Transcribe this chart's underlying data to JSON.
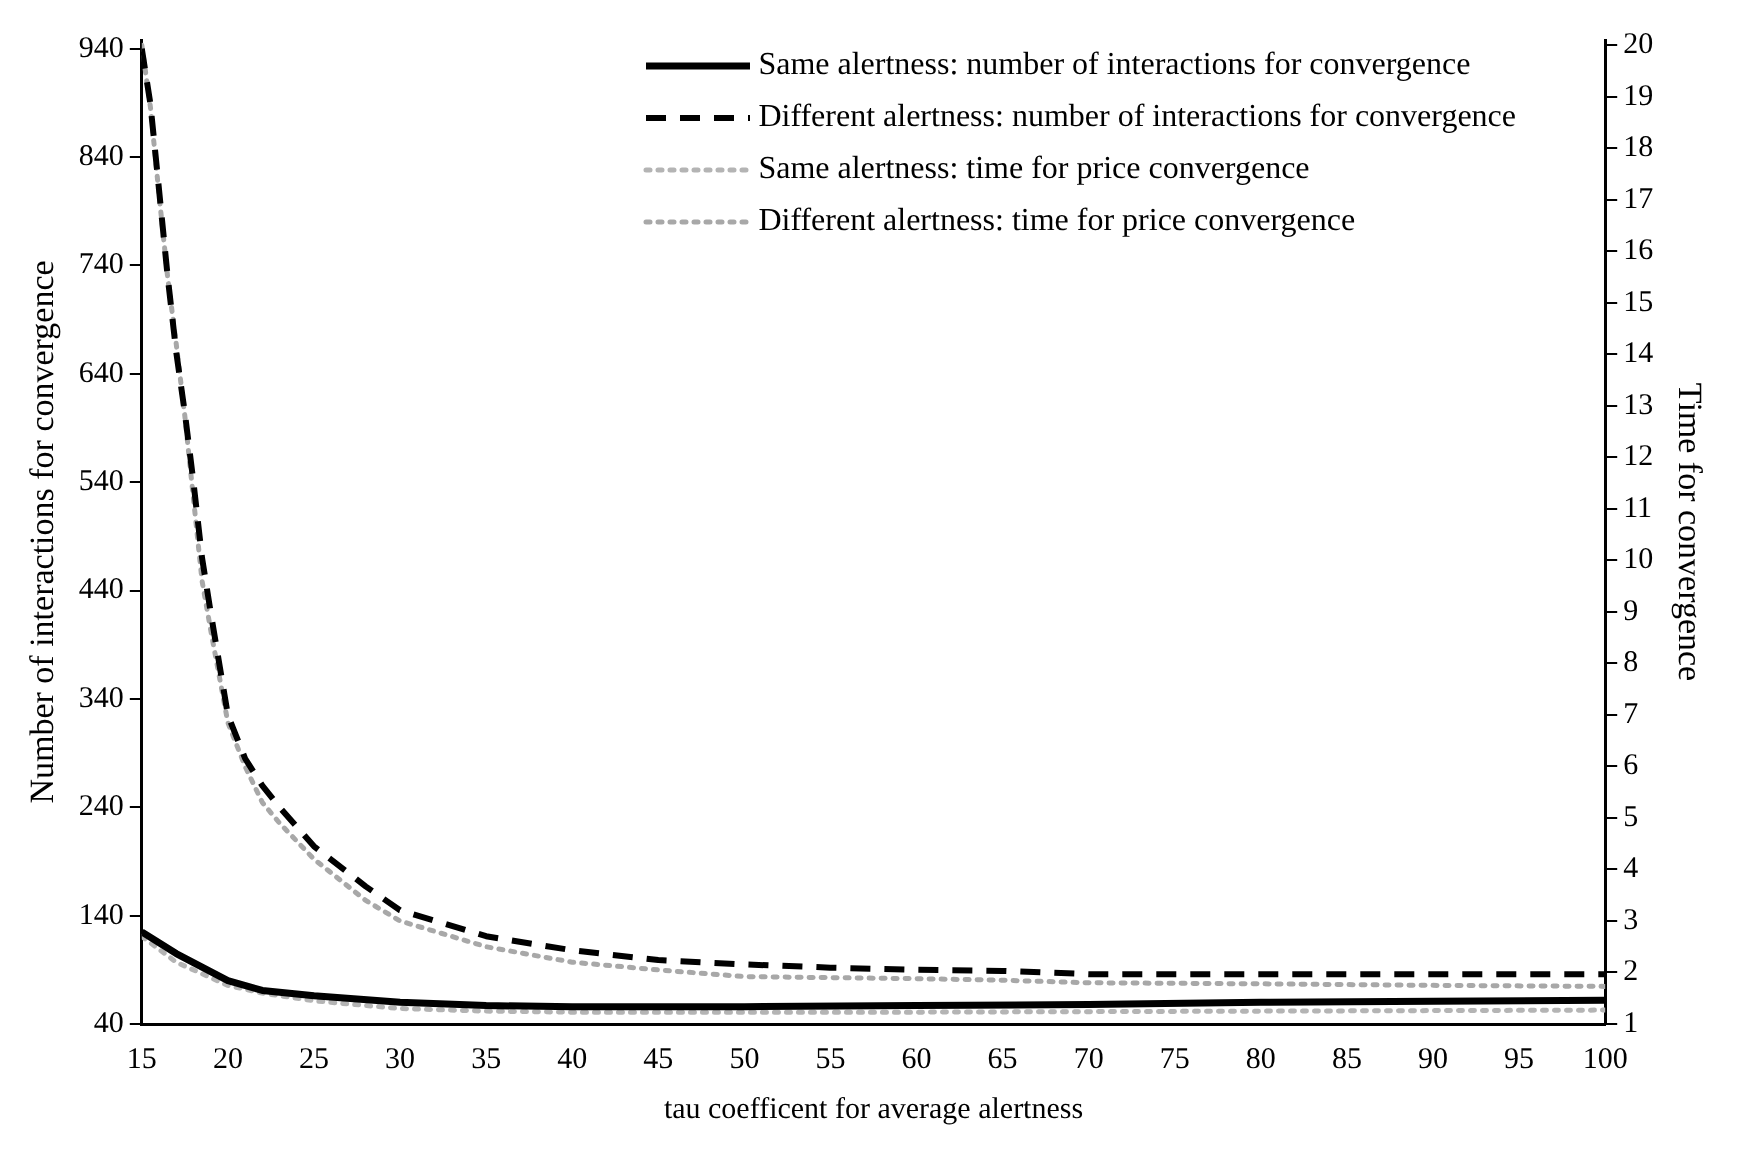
{
  "chart_data": {
    "type": "line",
    "xlabel": "tau coefficent for average alertness",
    "ylabel": "Number of interactions for convergence",
    "y2label": "Time for convergence",
    "x": [
      15,
      15.5,
      16,
      16.5,
      17,
      17.5,
      18,
      18.5,
      19,
      20,
      21,
      22,
      23,
      25,
      28,
      30,
      35,
      40,
      45,
      50,
      55,
      60,
      65,
      70,
      80,
      90,
      100
    ],
    "series": [
      {
        "name": "Same alertness: number of interactions for convergence",
        "color": "#000000",
        "line_style": "solid",
        "x": [
          15,
          17,
          20,
          22,
          25,
          30,
          35,
          40,
          50,
          60,
          70,
          80,
          90,
          100
        ],
        "values": [
          125,
          105,
          80,
          71,
          66,
          60,
          57,
          56,
          56,
          57,
          58,
          60,
          61,
          62
        ]
      },
      {
        "name": "Different alertness: number of interactions for convergence",
        "color": "#000000",
        "line_style": "dashed",
        "values": [
          940,
          889,
          810,
          730,
          660,
          604,
          540,
          470,
          420,
          325,
          285,
          260,
          240,
          204,
          167,
          145,
          121,
          108,
          99,
          95,
          92,
          90,
          89,
          86,
          86,
          86,
          86
        ]
      },
      {
        "name": "Same alertness: time for price convergence",
        "color": "#b4b4b4",
        "line_style": "dotted",
        "axis": "y2",
        "x": [
          15,
          17,
          20,
          22,
          25,
          30,
          35,
          40,
          50,
          60,
          70,
          80,
          90,
          100
        ],
        "values": [
          2.7,
          2.2,
          1.75,
          1.6,
          1.45,
          1.3,
          1.25,
          1.23,
          1.23,
          1.23,
          1.24,
          1.25,
          1.26,
          1.27
        ]
      },
      {
        "name": "Different alertness: time for price convergence",
        "color": "#a8a8a8",
        "line_style": "dotted",
        "axis": "y2",
        "values": [
          20,
          18.8,
          17.1,
          15.5,
          14.2,
          12.8,
          11.2,
          9.6,
          8.65,
          6.85,
          6.0,
          5.3,
          4.9,
          4.2,
          3.4,
          3.0,
          2.5,
          2.2,
          2.05,
          1.92,
          1.9,
          1.88,
          1.85,
          1.8,
          1.78,
          1.75,
          1.73
        ]
      }
    ],
    "xlim": [
      15,
      100
    ],
    "xticks": [
      15,
      20,
      25,
      30,
      35,
      40,
      45,
      50,
      55,
      60,
      65,
      70,
      75,
      80,
      85,
      90,
      95,
      100
    ],
    "ylim": [
      40,
      948
    ],
    "yticks": [
      40,
      140,
      240,
      340,
      440,
      540,
      640,
      740,
      840,
      940
    ],
    "y2lim": [
      1,
      20.1
    ],
    "y2ticks": [
      1,
      2,
      3,
      4,
      5,
      6,
      7,
      8,
      9,
      10,
      11,
      12,
      13,
      14,
      15,
      16,
      17,
      18,
      19,
      20
    ],
    "grid": false,
    "legend": "top right",
    "marker": "none"
  }
}
